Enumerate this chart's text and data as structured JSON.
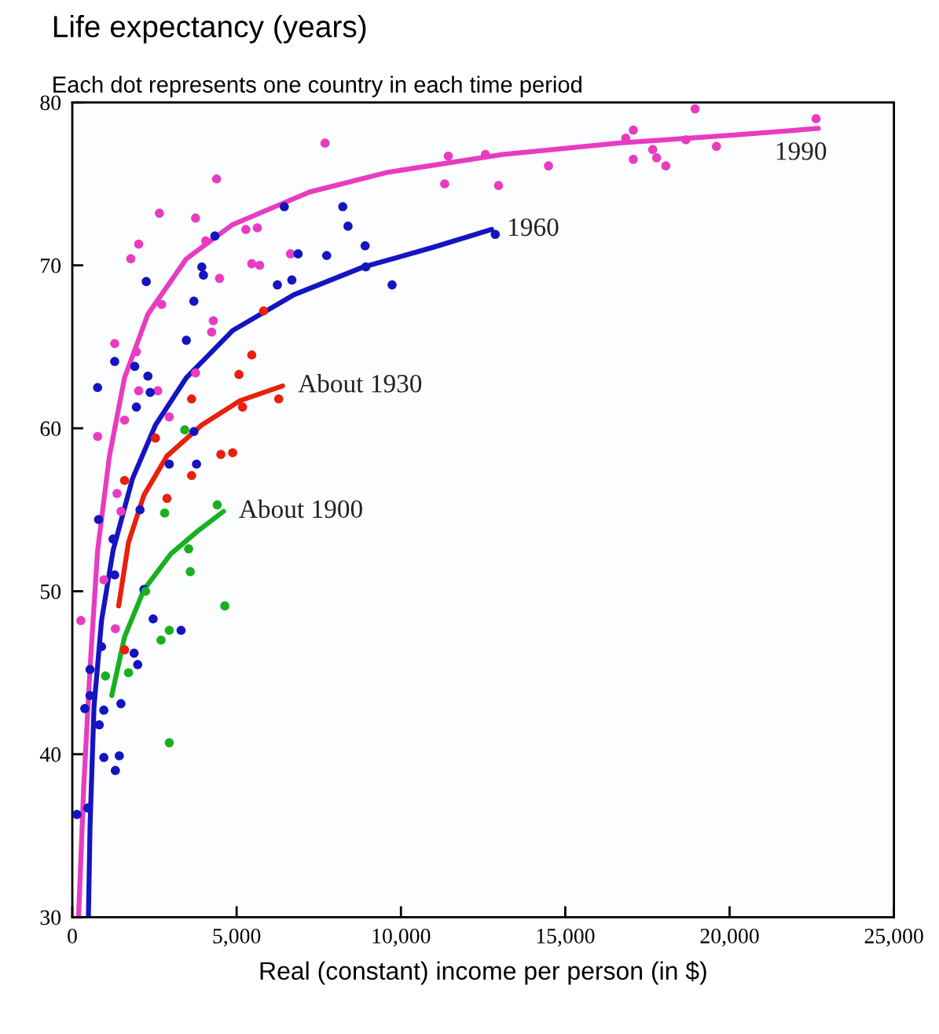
{
  "chart_data": {
    "type": "scatter",
    "title": "Life expectancy (years)",
    "subtitle": "Each dot represents one country in each time period",
    "xlabel": "Real (constant) income per person (in $)",
    "xlim": [
      0,
      25000
    ],
    "ylim": [
      30,
      80
    ],
    "xticks": [
      0,
      {
        "value": 5000,
        "label": "5,000"
      },
      {
        "value": 10000,
        "label": "10,000"
      },
      {
        "value": 15000,
        "label": "15,000"
      },
      {
        "value": 20000,
        "label": "20,000"
      },
      {
        "value": 25000,
        "label": "25,000"
      }
    ],
    "yticks": [
      30,
      40,
      50,
      60,
      70,
      80
    ],
    "grid": false,
    "legend": false,
    "marker": "circle",
    "series": [
      {
        "color": "#e83cc0",
        "x": [
          22630,
          18950,
          7690,
          11440,
          12570,
          12970,
          11330,
          14490,
          16840,
          17070,
          17070,
          17660,
          17780,
          18060,
          18670,
          19600,
          4390,
          3750,
          2650,
          2020,
          1780,
          5280,
          5700,
          4060,
          5630,
          4480,
          5460,
          6640,
          4290,
          4240,
          1290,
          3750,
          1950,
          2720,
          2020,
          2600,
          2950,
          770,
          1590,
          1360,
          1480,
          260,
          1310,
          960
        ],
        "values": [
          79.0,
          79.6,
          77.5,
          76.7,
          76.8,
          74.9,
          75.0,
          76.1,
          77.8,
          78.3,
          76.5,
          77.1,
          76.6,
          76.1,
          77.7,
          77.3,
          75.3,
          72.9,
          73.2,
          71.3,
          70.4,
          72.2,
          70.0,
          71.5,
          72.3,
          69.2,
          70.1,
          70.7,
          66.6,
          65.9,
          65.2,
          63.4,
          64.7,
          67.6,
          62.3,
          62.3,
          60.7,
          59.5,
          60.5,
          56.0,
          54.9,
          48.2,
          47.7,
          50.7
        ]
      },
      {
        "color": "#1414c0",
        "x": [
          12870,
          8230,
          8390,
          8930,
          9730,
          7740,
          8910,
          6450,
          4340,
          6870,
          6240,
          6680,
          2250,
          3940,
          3990,
          3700,
          3470,
          1290,
          1900,
          770,
          2300,
          2370,
          1950,
          3700,
          2950,
          3780,
          2060,
          800,
          1240,
          1290,
          2180,
          2460,
          3310,
          890,
          1880,
          1990,
          540,
          540,
          380,
          960,
          1480,
          820,
          960,
          1430,
          1310,
          140,
          470
        ],
        "values": [
          71.9,
          73.6,
          72.4,
          69.9,
          68.8,
          70.6,
          71.2,
          73.6,
          71.8,
          70.7,
          68.8,
          69.1,
          69.0,
          69.9,
          69.4,
          67.8,
          65.4,
          64.1,
          63.8,
          62.5,
          63.2,
          62.2,
          61.3,
          59.8,
          57.8,
          57.8,
          55.0,
          54.4,
          53.2,
          51.0,
          50.1,
          48.3,
          47.6,
          46.6,
          46.2,
          45.5,
          45.2,
          43.6,
          42.8,
          42.7,
          43.1,
          41.8,
          39.8,
          39.9,
          39.0,
          36.3,
          36.7
        ]
      },
      {
        "color": "#e8200c",
        "x": [
          5820,
          5460,
          5070,
          3630,
          5180,
          6280,
          2530,
          4520,
          4880,
          3630,
          1590,
          2880,
          1590
        ],
        "values": [
          67.2,
          64.5,
          63.3,
          61.8,
          61.3,
          61.8,
          59.4,
          58.4,
          58.5,
          57.1,
          56.8,
          55.7,
          46.4
        ]
      },
      {
        "color": "#18b020",
        "x": [
          2810,
          4410,
          3540,
          3590,
          4640,
          2230,
          2700,
          2950,
          1010,
          1710,
          2950,
          3420
        ],
        "values": [
          54.8,
          55.3,
          52.6,
          51.2,
          49.1,
          50.0,
          47.0,
          47.6,
          44.8,
          45.0,
          40.7,
          59.9
        ]
      },
      {
        "type": "line",
        "marker": "none",
        "name": "1990",
        "color": "#e83cc0",
        "x": [
          190,
          350,
          540,
          770,
          1130,
          1590,
          2300,
          3470,
          4880,
          7220,
          9570,
          13090,
          16600,
          20120,
          22700
        ],
        "values": [
          30,
          38.1,
          45.3,
          52.5,
          58.3,
          63.1,
          67.0,
          70.4,
          72.5,
          74.5,
          75.7,
          76.8,
          77.5,
          78.0,
          78.4
        ]
      },
      {
        "type": "line",
        "marker": "none",
        "name": "1960",
        "color": "#1414c0",
        "x": [
          490,
          540,
          660,
          890,
          1240,
          1830,
          2530,
          3470,
          4880,
          6750,
          8860,
          10970,
          12760
        ],
        "values": [
          30,
          35.6,
          42.9,
          48.2,
          52.5,
          56.9,
          60.2,
          63.1,
          66.0,
          68.2,
          69.9,
          71.1,
          72.2
        ]
      },
      {
        "type": "line",
        "marker": "none",
        "name": "About 1930",
        "color": "#e8200c",
        "x": [
          1410,
          1710,
          2180,
          2880,
          3940,
          5110,
          6400
        ],
        "values": [
          49.1,
          53.0,
          55.9,
          58.3,
          60.2,
          61.7,
          62.6
        ]
      },
      {
        "type": "line",
        "marker": "none",
        "name": "About 1900",
        "color": "#18b020",
        "x": [
          1200,
          1590,
          2180,
          3000,
          3820,
          4600
        ],
        "values": [
          43.6,
          47.2,
          50.1,
          52.3,
          53.7,
          54.9
        ]
      }
    ]
  }
}
